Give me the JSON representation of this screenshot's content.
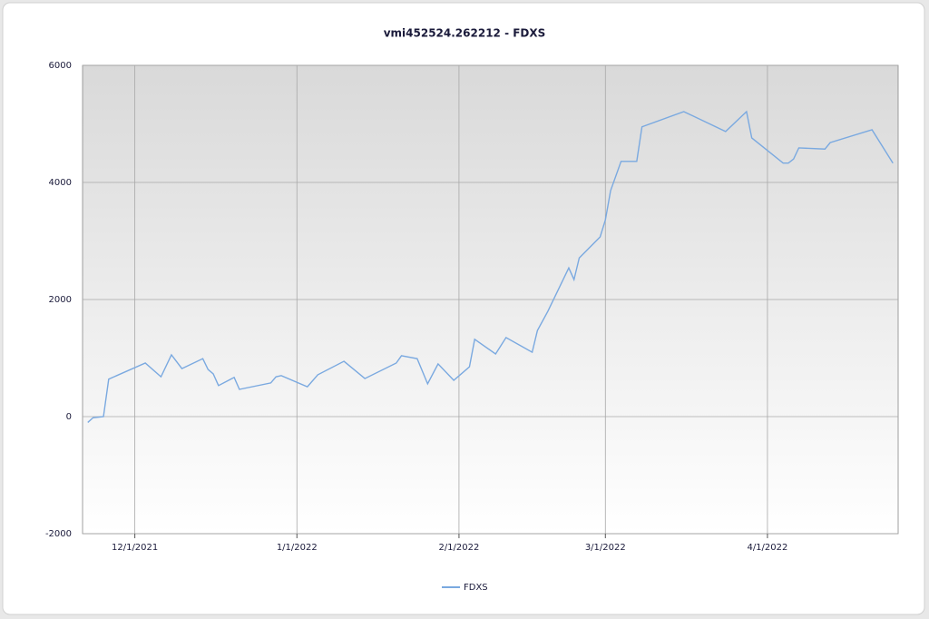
{
  "chart_data": {
    "type": "line",
    "title": "vmi452524.262212 - FDXS",
    "x": [
      "11/22/2021",
      "11/23/2021",
      "11/25/2021",
      "11/26/2021",
      "12/3/2021",
      "12/6/2021",
      "12/8/2021",
      "12/10/2021",
      "12/14/2021",
      "12/15/2021",
      "12/16/2021",
      "12/17/2021",
      "12/20/2021",
      "12/21/2021",
      "12/27/2021",
      "12/28/2021",
      "12/29/2021",
      "1/3/2022",
      "1/5/2022",
      "1/10/2022",
      "1/14/2022",
      "1/20/2022",
      "1/21/2022",
      "1/24/2022",
      "1/26/2022",
      "1/28/2022",
      "1/31/2022",
      "2/3/2022",
      "2/4/2022",
      "2/8/2022",
      "2/10/2022",
      "2/15/2022",
      "2/16/2022",
      "2/18/2022",
      "2/22/2022",
      "2/23/2022",
      "2/24/2022",
      "2/28/2022",
      "3/1/2022",
      "3/2/2022",
      "3/4/2022",
      "3/7/2022",
      "3/8/2022",
      "3/16/2022",
      "3/24/2022",
      "3/28/2022",
      "3/29/2022",
      "4/4/2022",
      "4/5/2022",
      "4/6/2022",
      "4/7/2022",
      "4/12/2022",
      "4/13/2022",
      "4/21/2022",
      "4/25/2022"
    ],
    "series": [
      {
        "name": "FDXS",
        "color": "#7aa9e0",
        "values": [
          -100,
          -20,
          0,
          640,
          915,
          680,
          1055,
          820,
          990,
          805,
          730,
          530,
          670,
          465,
          575,
          680,
          700,
          510,
          715,
          945,
          650,
          915,
          1040,
          990,
          560,
          900,
          620,
          850,
          1320,
          1070,
          1350,
          1100,
          1470,
          1800,
          2540,
          2340,
          2710,
          3070,
          3360,
          3860,
          4360,
          4360,
          4950,
          5210,
          4870,
          5210,
          4760,
          4330,
          4330,
          4400,
          4590,
          4570,
          4680,
          4900,
          4330
        ]
      }
    ],
    "xlim": [
      "11/21/2021",
      "4/26/2022"
    ],
    "xticks": [
      "12/1/2021",
      "1/1/2022",
      "2/1/2022",
      "3/1/2022",
      "4/1/2022"
    ],
    "ylim": [
      -2000,
      6000
    ],
    "yticks": [
      -2000,
      0,
      2000,
      4000,
      6000
    ],
    "grid": true,
    "legend": "bottom"
  }
}
